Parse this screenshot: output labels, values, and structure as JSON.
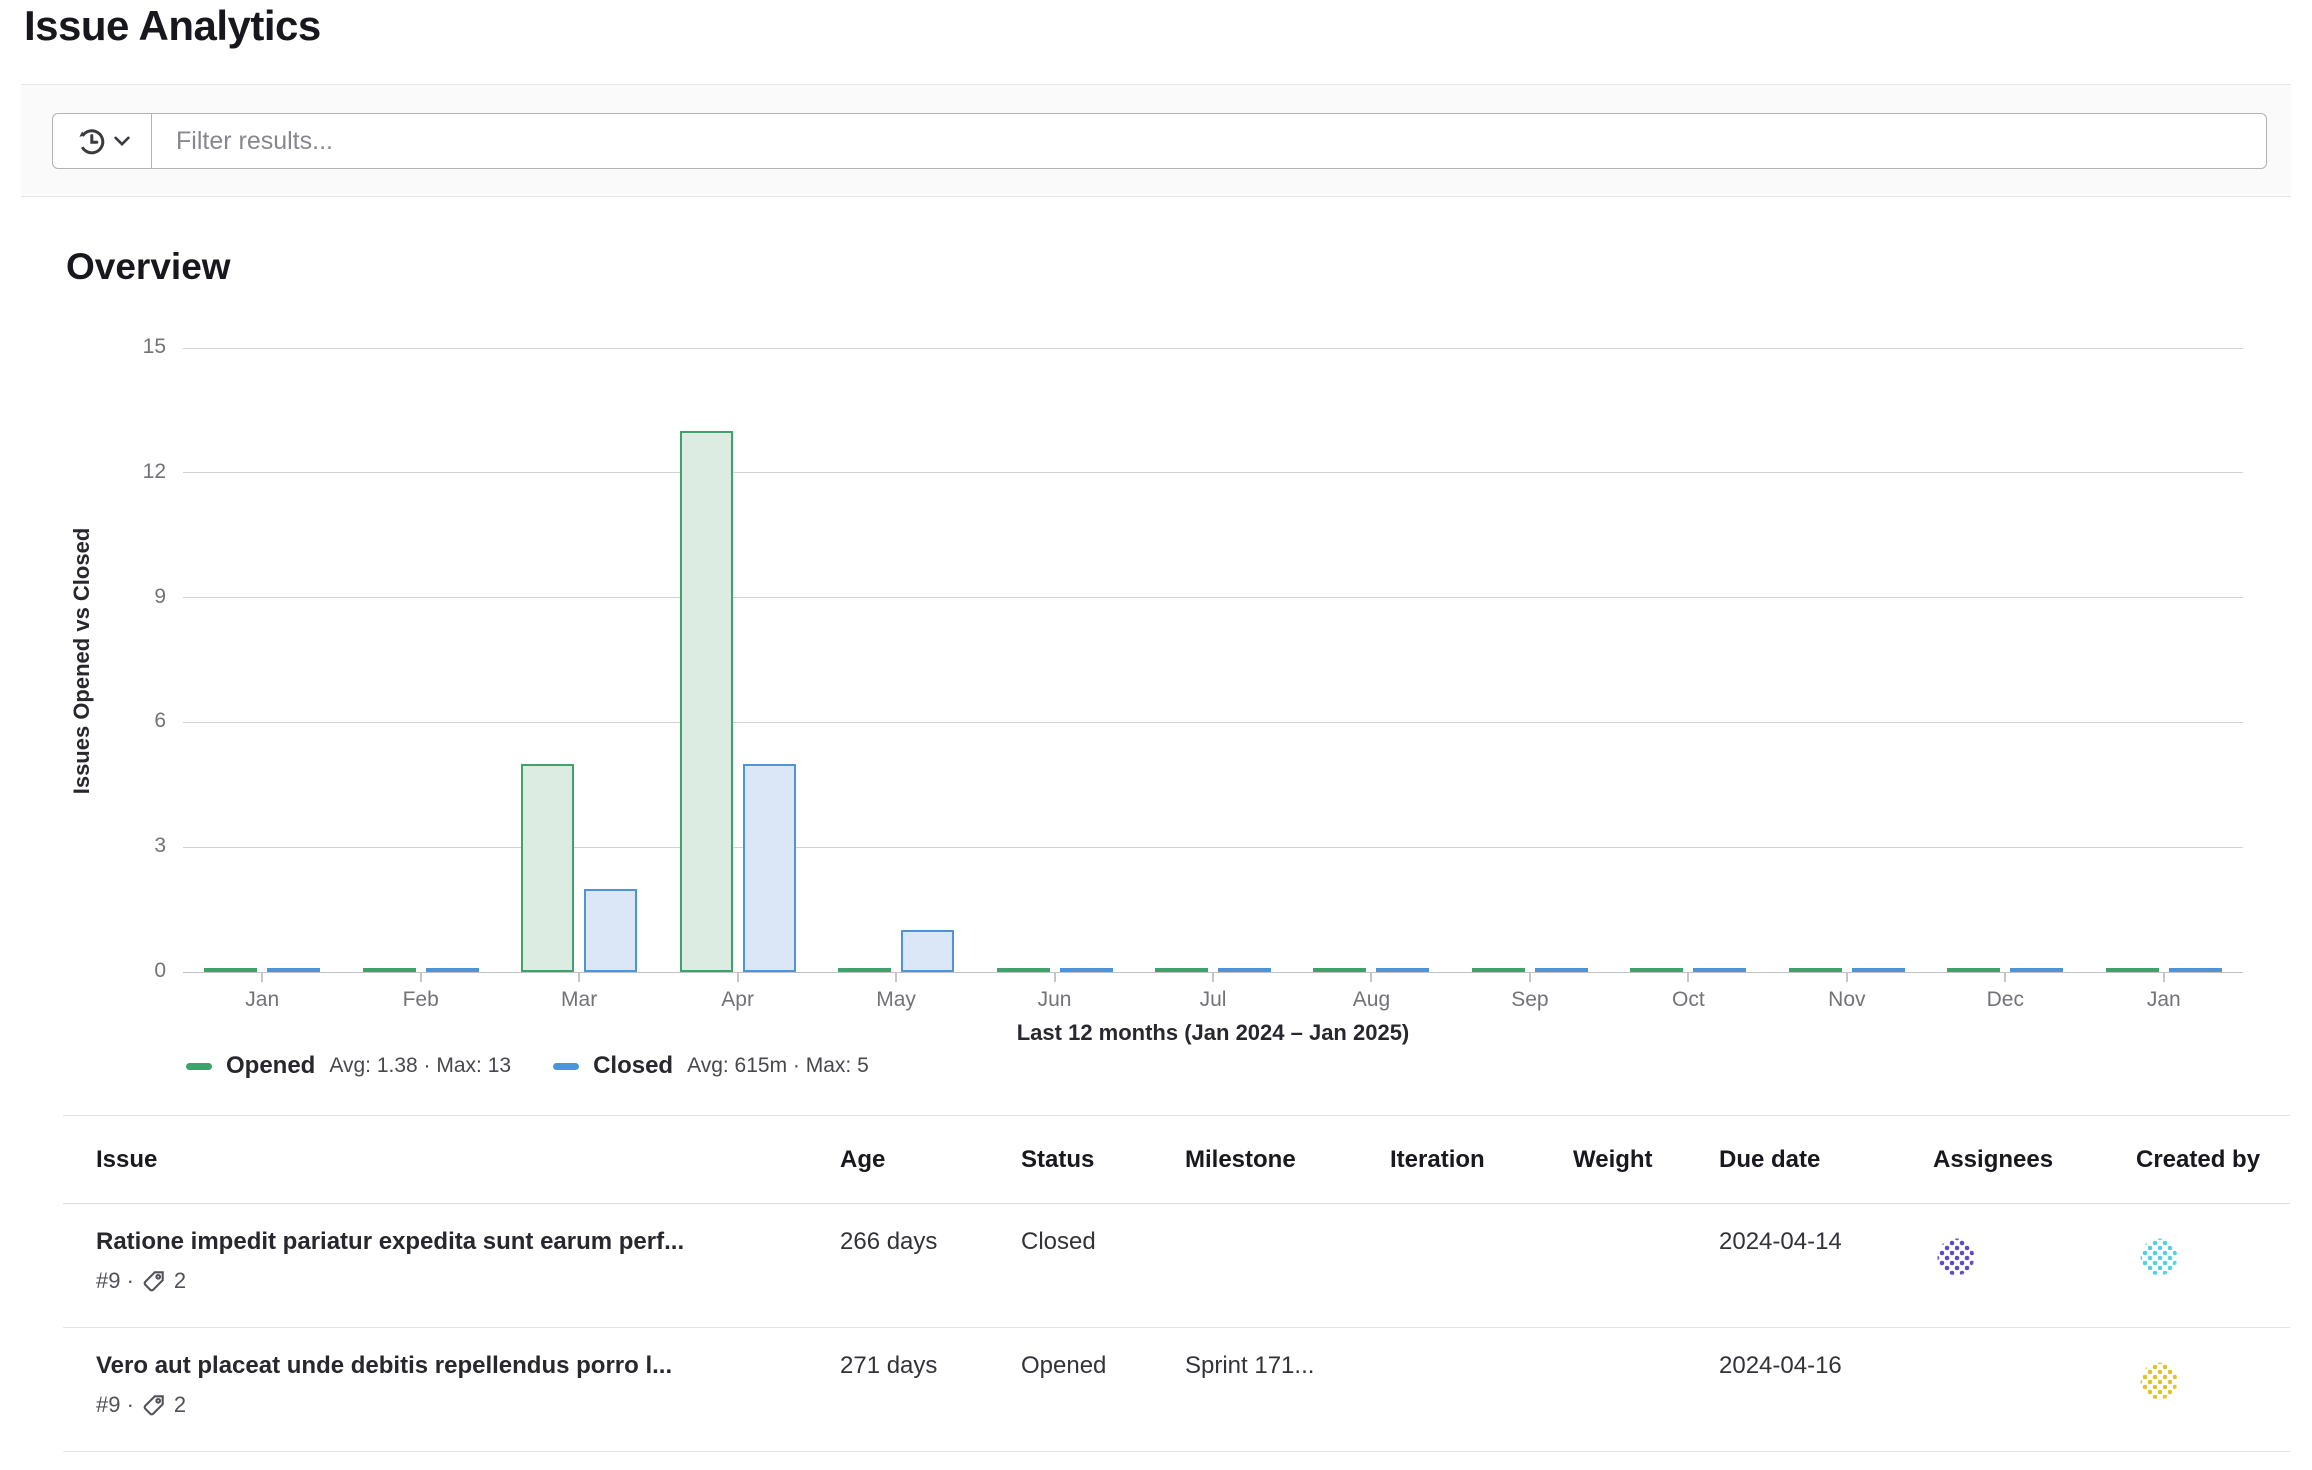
{
  "page": {
    "title": "Issue Analytics"
  },
  "filter": {
    "placeholder": "Filter results..."
  },
  "overview": {
    "heading": "Overview"
  },
  "chart_data": {
    "type": "bar",
    "title": "Overview",
    "categories": [
      "Jan",
      "Feb",
      "Mar",
      "Apr",
      "May",
      "Jun",
      "Jul",
      "Aug",
      "Sep",
      "Oct",
      "Nov",
      "Dec",
      "Jan"
    ],
    "series": [
      {
        "name": "Opened",
        "color": "#3ea26a",
        "fill": "#ddece3",
        "values": [
          0,
          0,
          5,
          13,
          0,
          0,
          0,
          0,
          0,
          0,
          0,
          0,
          0
        ]
      },
      {
        "name": "Closed",
        "color": "#4f94d9",
        "fill": "#dbe6f7",
        "values": [
          0,
          0,
          2,
          5,
          1,
          0,
          0,
          0,
          0,
          0,
          0,
          0,
          0
        ]
      }
    ],
    "ylabel": "Issues Opened vs Closed",
    "xlabel": "Last 12 months (Jan 2024 – Jan 2025)",
    "yticks": [
      0,
      3,
      6,
      9,
      12,
      15
    ],
    "ylim": [
      0,
      15
    ],
    "grid": true,
    "legend_position": "bottom-left",
    "legend": [
      {
        "label": "Opened",
        "stats": "Avg: 1.38 · Max: 13"
      },
      {
        "label": "Closed",
        "stats": "Avg: 615m · Max: 5"
      }
    ]
  },
  "table": {
    "columns": [
      "Issue",
      "Age",
      "Status",
      "Milestone",
      "Iteration",
      "Weight",
      "Due date",
      "Assignees",
      "Created by"
    ],
    "rows": [
      {
        "title": "Ratione impedit pariatur expedita sunt earum perf...",
        "ref": "#9 ·",
        "label_count": "2",
        "age": "266 days",
        "status": "Closed",
        "milestone": "",
        "iteration": "",
        "weight": "",
        "due_date": "2024-04-14",
        "assignee_color": "#5b4bc8",
        "created_color": "#53d0e4"
      },
      {
        "title": "Vero aut placeat unde debitis repellendus porro l...",
        "ref": "#9 ·",
        "label_count": "2",
        "age": "271 days",
        "status": "Opened",
        "milestone": "Sprint 171...",
        "iteration": "",
        "weight": "",
        "due_date": "2024-04-16",
        "assignee_color": "",
        "created_color": "#dfc32d"
      }
    ]
  }
}
